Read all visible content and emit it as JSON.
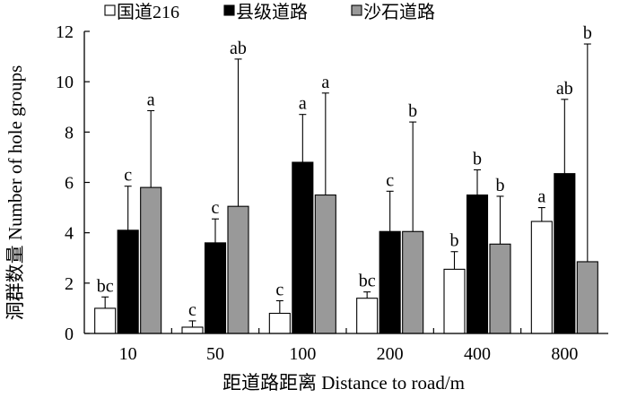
{
  "chart_data": {
    "type": "bar",
    "xlabel": "距道路距离 Distance to road/m",
    "ylabel": "洞群数量 Number of hole groups",
    "ylim": [
      0,
      12
    ],
    "yticks": [
      "0",
      "2",
      "4",
      "6",
      "8",
      "10",
      "12"
    ],
    "categories": [
      "10",
      "50",
      "100",
      "200",
      "400",
      "800"
    ],
    "legend_position": "top",
    "series": [
      {
        "name": "国道216",
        "color": "#ffffff",
        "values": [
          1.0,
          0.25,
          0.8,
          1.4,
          2.55,
          4.45
        ],
        "errors": [
          0.45,
          0.25,
          0.5,
          0.25,
          0.7,
          0.55
        ],
        "labels": [
          "bc",
          "c",
          "c",
          "bc",
          "b",
          "a"
        ]
      },
      {
        "name": "县级道路",
        "color": "#000000",
        "values": [
          4.1,
          3.6,
          6.8,
          4.05,
          5.5,
          6.35
        ],
        "errors": [
          1.75,
          0.95,
          1.9,
          1.6,
          1.0,
          2.95
        ],
        "labels": [
          "c",
          "c",
          "a",
          "c",
          "b",
          "ab"
        ]
      },
      {
        "name": "沙石道路",
        "color": "#999999",
        "values": [
          5.8,
          5.05,
          5.5,
          4.05,
          3.55,
          2.85
        ],
        "errors": [
          3.05,
          5.85,
          4.05,
          4.35,
          1.9,
          8.65
        ],
        "labels": [
          "a",
          "ab",
          "a",
          "b",
          "b",
          "b"
        ]
      }
    ]
  }
}
